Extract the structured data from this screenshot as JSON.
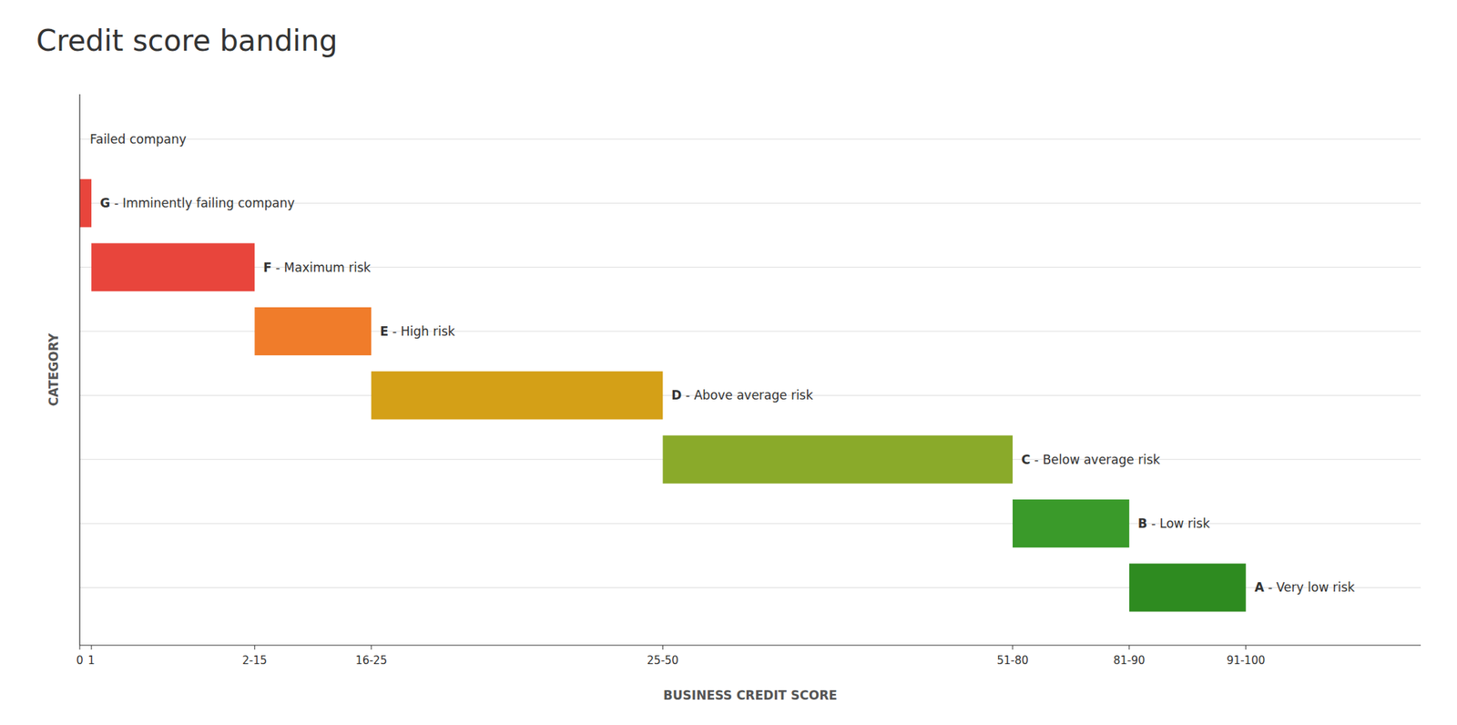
{
  "chart_data": {
    "type": "bar",
    "orientation": "horizontal",
    "title": "Credit score banding",
    "xlabel": "BUSINESS CREDIT SCORE",
    "ylabel": "CATEGORY",
    "categories": [
      "G - Imminently failing company",
      "F - Maximum risk",
      "E - High risk",
      "D - Above average risk",
      "C - Below average risk",
      "B - Low risk",
      "A - Very low risk"
    ],
    "values": [
      1,
      15,
      25,
      50,
      80,
      90,
      100
    ],
    "starts": [
      0,
      1,
      15,
      25,
      50,
      80,
      90
    ],
    "colors": [
      "#e8453c",
      "#e8453c",
      "#f07c2a",
      "#d4a017",
      "#8aaa2a",
      "#3a9a2a",
      "#2e8b20"
    ],
    "annotation": "Failed company",
    "xlim": [
      0,
      115
    ],
    "xticks": [
      0,
      1,
      {
        "value": 15,
        "label": "2-15"
      },
      {
        "value": 25,
        "label": "16-25"
      },
      {
        "value": 50,
        "label": "25-50"
      },
      {
        "value": 80,
        "label": "51-80"
      },
      {
        "value": 90,
        "label": "81-90"
      },
      {
        "value": 100,
        "label": "91-100"
      }
    ],
    "grid": true
  }
}
